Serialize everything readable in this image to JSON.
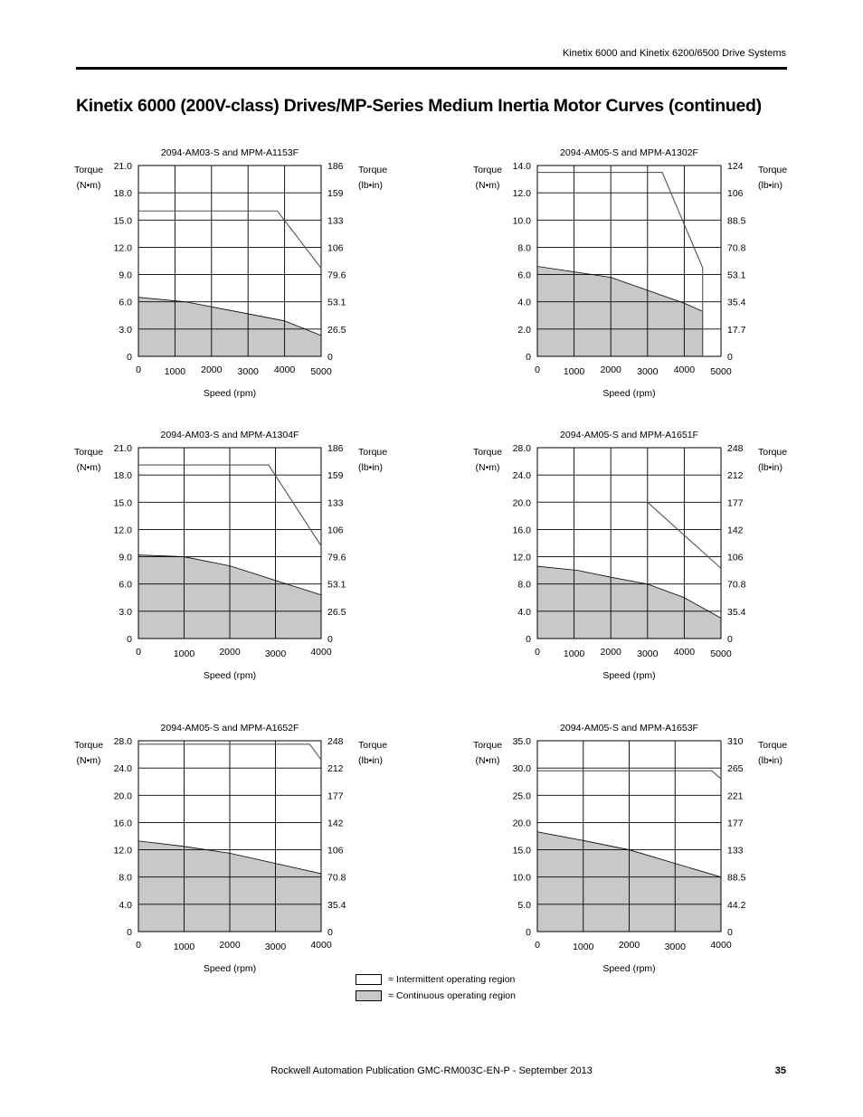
{
  "header": {
    "title": "Kinetix 6000 and Kinetix 6200/6500 Drive Systems"
  },
  "page_title": "Kinetix 6000 (200V-class) Drives/MP-Series Medium Inertia Motor Curves (continued)",
  "colors": {
    "continuous_fill": "#c8c8c8",
    "intermittent_line": "#555555",
    "grid": "#000000"
  },
  "legend": {
    "intermittent": "= Intermittent operating region",
    "continuous": "= Continuous operating region"
  },
  "footer": {
    "publication": "Rockwell Automation Publication GMC-RM003C-EN-P - September 2013",
    "page_number": "35"
  },
  "chart_data": [
    {
      "type": "area",
      "title": "2094-AM03-S and MPM-A1153F",
      "ylabel_left": [
        "Torque",
        "(N•m)"
      ],
      "ylabel_right": [
        "Torque",
        "(lb•in)"
      ],
      "xlabel": "Speed (rpm)",
      "xlim": [
        0,
        5000
      ],
      "ylim": [
        0,
        21
      ],
      "x_ticks": [
        "0",
        "1000",
        "2000",
        "3000",
        "4000",
        "5000"
      ],
      "y_ticks_left": [
        "0",
        "3.0",
        "6.0",
        "9.0",
        "12.0",
        "15.0",
        "18.0",
        "21.0"
      ],
      "y_ticks_right": [
        "0",
        "26.5",
        "53.1",
        "79.6",
        "106",
        "133",
        "159",
        "186"
      ],
      "grid": true,
      "intermittent": {
        "x": [
          0,
          3800,
          5000
        ],
        "y": [
          16,
          16,
          9.7
        ]
      },
      "continuous": {
        "x": [
          0,
          1300,
          4000,
          5000
        ],
        "y": [
          6.5,
          6.0,
          3.9,
          2.3
        ]
      }
    },
    {
      "type": "area",
      "title": "2094-AM05-S and MPM-A1302F",
      "ylabel_left": [
        "Torque",
        "(N•m)"
      ],
      "ylabel_right": [
        "Torque",
        "(lb•in)"
      ],
      "xlabel": "Speed (rpm)",
      "xlim": [
        0,
        5000
      ],
      "ylim": [
        0,
        14
      ],
      "x_ticks": [
        "0",
        "1000",
        "2000",
        "3000",
        "4000",
        "5000"
      ],
      "y_ticks_left": [
        "0",
        "2.0",
        "4.0",
        "6.0",
        "8.0",
        "10.0",
        "12.0",
        "14.0"
      ],
      "y_ticks_right": [
        "0",
        "17.7",
        "35.4",
        "53.1",
        "70.8",
        "88.5",
        "106",
        "124"
      ],
      "grid": true,
      "intermittent": {
        "x": [
          0,
          3400,
          4500,
          4500
        ],
        "y": [
          13.5,
          13.5,
          6.5,
          0
        ]
      },
      "continuous": {
        "x": [
          0,
          2000,
          4000,
          4500,
          4500
        ],
        "y": [
          6.6,
          5.8,
          3.9,
          3.3,
          0
        ]
      }
    },
    {
      "type": "area",
      "title": "2094-AM03-S and MPM-A1304F",
      "ylabel_left": [
        "Torque",
        "(N•m)"
      ],
      "ylabel_right": [
        "Torque",
        "(lb•in)"
      ],
      "xlabel": "Speed (rpm)",
      "xlim": [
        0,
        4000
      ],
      "ylim": [
        0,
        21
      ],
      "x_ticks": [
        "0",
        "1000",
        "2000",
        "3000",
        "4000"
      ],
      "y_ticks_left": [
        "0",
        "3.0",
        "6.0",
        "9.0",
        "12.0",
        "15.0",
        "18.0",
        "21.0"
      ],
      "y_ticks_right": [
        "0",
        "26.5",
        "53.1",
        "79.6",
        "106",
        "133",
        "159",
        "186"
      ],
      "grid": true,
      "intermittent": {
        "x": [
          0,
          2850,
          4000
        ],
        "y": [
          19.1,
          19.1,
          10.2
        ]
      },
      "continuous": {
        "x": [
          0,
          1000,
          2000,
          3000,
          4000
        ],
        "y": [
          9.2,
          9.0,
          8.0,
          6.4,
          4.8
        ]
      }
    },
    {
      "type": "area",
      "title": "2094-AM05-S and MPM-A1651F",
      "ylabel_left": [
        "Torque",
        "(N•m)"
      ],
      "ylabel_right": [
        "Torque",
        "(lb•in)"
      ],
      "xlabel": "Speed (rpm)",
      "xlim": [
        0,
        5000
      ],
      "ylim": [
        0,
        28
      ],
      "x_ticks": [
        "0",
        "1000",
        "2000",
        "3000",
        "4000",
        "5000"
      ],
      "y_ticks_left": [
        "0",
        "4.0",
        "8.0",
        "12.0",
        "16.0",
        "20.0",
        "24.0",
        "28.0"
      ],
      "y_ticks_right": [
        "0",
        "35.4",
        "70.8",
        "106",
        "142",
        "177",
        "212",
        "248"
      ],
      "grid": true,
      "intermittent": {
        "x": [
          0,
          3000,
          5000
        ],
        "y": [
          20,
          20,
          10.3
        ]
      },
      "continuous": {
        "x": [
          0,
          1100,
          2000,
          3000,
          4000,
          5000
        ],
        "y": [
          10.6,
          10.0,
          9.0,
          8.0,
          6.0,
          3.0
        ]
      }
    },
    {
      "type": "area",
      "title": "2094-AM05-S and MPM-A1652F",
      "ylabel_left": [
        "Torque",
        "(N•m)"
      ],
      "ylabel_right": [
        "Torque",
        "(lb•in)"
      ],
      "xlabel": "Speed (rpm)",
      "xlim": [
        0,
        4000
      ],
      "ylim": [
        0,
        28
      ],
      "x_ticks": [
        "0",
        "1000",
        "2000",
        "3000",
        "4000"
      ],
      "y_ticks_left": [
        "0",
        "4.0",
        "8.0",
        "12.0",
        "16.0",
        "20.0",
        "24.0",
        "28.0"
      ],
      "y_ticks_right": [
        "0",
        "35.4",
        "70.8",
        "106",
        "142",
        "177",
        "212",
        "248"
      ],
      "grid": true,
      "intermittent": {
        "x": [
          0,
          3750,
          4000
        ],
        "y": [
          27.5,
          27.5,
          25.2
        ]
      },
      "continuous": {
        "x": [
          0,
          1000,
          2000,
          3000,
          4000
        ],
        "y": [
          13.3,
          12.5,
          11.5,
          10.0,
          8.5
        ]
      }
    },
    {
      "type": "area",
      "title": "2094-AM05-S and MPM-A1653F",
      "ylabel_left": [
        "Torque",
        "(N•m)"
      ],
      "ylabel_right": [
        "Torque",
        "(lb•in)"
      ],
      "xlabel": "Speed (rpm)",
      "xlim": [
        0,
        4000
      ],
      "ylim": [
        0,
        35
      ],
      "x_ticks": [
        "0",
        "1000",
        "2000",
        "3000",
        "4000"
      ],
      "y_ticks_left": [
        "0",
        "5.0",
        "10.0",
        "15.0",
        "20.0",
        "25.0",
        "30.0",
        "35.0"
      ],
      "y_ticks_right": [
        "0",
        "44.2",
        "88.5",
        "133",
        "177",
        "221",
        "265",
        "310"
      ],
      "grid": true,
      "intermittent": {
        "x": [
          0,
          3800,
          4000
        ],
        "y": [
          29.5,
          29.5,
          28.0
        ]
      },
      "continuous": {
        "x": [
          0,
          1000,
          2000,
          3000,
          4000
        ],
        "y": [
          18.3,
          16.7,
          15.0,
          12.5,
          10.0
        ]
      }
    }
  ]
}
